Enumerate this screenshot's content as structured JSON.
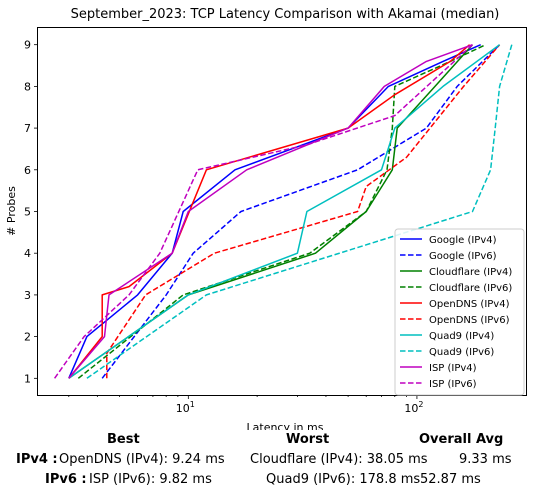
{
  "chart_data": {
    "type": "line",
    "title": "September_2023: TCP Latency Comparison with Akamai (median)",
    "xlabel": "Latency in ms",
    "ylabel": "# Probes",
    "xscale": "log",
    "xlim": [
      2.2,
      300
    ],
    "ylim": [
      0.6,
      9.4
    ],
    "xticks": [
      {
        "value": 10,
        "base": "10",
        "exp": "1"
      },
      {
        "value": 100,
        "base": "10",
        "exp": "2"
      }
    ],
    "yticks": [
      1,
      2,
      3,
      4,
      5,
      6,
      7,
      8,
      9
    ],
    "grid": false,
    "legend_position": "lower-right",
    "series": [
      {
        "name": "Google (IPv4)",
        "color": "#0000ff",
        "dash": "solid",
        "x": [
          3.0,
          3.6,
          6.0,
          8.5,
          9.5,
          16,
          50,
          75,
          130,
          190
        ],
        "y": [
          1,
          2,
          3,
          4,
          5,
          6,
          7,
          8,
          8.6,
          9
        ]
      },
      {
        "name": "Google (IPv6)",
        "color": "#0000ff",
        "dash": "dashed",
        "x": [
          4.2,
          8.0,
          10.5,
          17,
          55,
          110,
          150,
          230
        ],
        "y": [
          1,
          3,
          4,
          5,
          6,
          7,
          8,
          9
        ]
      },
      {
        "name": "Cloudflare (IPv4)",
        "color": "#008000",
        "dash": "solid",
        "x": [
          3.0,
          10.0,
          36,
          60,
          78,
          82,
          120,
          175
        ],
        "y": [
          1,
          3,
          4,
          5,
          6,
          7,
          8,
          9
        ]
      },
      {
        "name": "Cloudflare (IPv6)",
        "color": "#008000",
        "dash": "dashed",
        "x": [
          3.3,
          9.5,
          34,
          60,
          74,
          78,
          80,
          140,
          200
        ],
        "y": [
          1,
          3,
          4,
          5,
          6,
          7,
          8,
          8.6,
          9
        ]
      },
      {
        "name": "OpenDNS (IPv4)",
        "color": "#ff0000",
        "dash": "solid",
        "x": [
          3.0,
          4.2,
          4.2,
          5.5,
          8.5,
          12,
          50,
          80,
          140,
          170
        ],
        "y": [
          1,
          2,
          3,
          3.2,
          4,
          6,
          7,
          7.8,
          8.6,
          9
        ]
      },
      {
        "name": "OpenDNS (IPv6)",
        "color": "#ff0000",
        "dash": "dashed",
        "x": [
          4.4,
          4.4,
          6.5,
          13,
          55,
          60,
          90,
          160,
          230
        ],
        "y": [
          1,
          1.6,
          3,
          4,
          5,
          5.6,
          6.3,
          8,
          9
        ]
      },
      {
        "name": "Quad9 (IPv4)",
        "color": "#00bfbf",
        "dash": "solid",
        "x": [
          3.0,
          10.0,
          30,
          33,
          70,
          80,
          130,
          230
        ],
        "y": [
          1,
          3,
          4,
          5,
          6,
          7,
          8,
          9
        ]
      },
      {
        "name": "Quad9 (IPv6)",
        "color": "#00bfbf",
        "dash": "dashed",
        "x": [
          3.6,
          12,
          175,
          210,
          220,
          230,
          260
        ],
        "y": [
          1,
          3,
          5,
          6,
          7,
          8,
          9
        ]
      },
      {
        "name": "ISP (IPv4)",
        "color": "#bf00bf",
        "dash": "solid",
        "x": [
          3.0,
          4.3,
          4.5,
          8.5,
          10.0,
          18,
          50,
          72,
          110,
          175
        ],
        "y": [
          1,
          2,
          3,
          4,
          5,
          6,
          7,
          8,
          8.6,
          9
        ]
      },
      {
        "name": "ISP (IPv6)",
        "color": "#bf00bf",
        "dash": "dashed",
        "x": [
          2.6,
          3.5,
          5.5,
          7.5,
          11,
          33,
          80,
          175
        ],
        "y": [
          1,
          2,
          3,
          4,
          6,
          6.6,
          7.3,
          9
        ]
      }
    ]
  },
  "stats": {
    "headers": {
      "best": "Best",
      "worst": "Worst",
      "avg": "Overall Avg"
    },
    "rows": [
      {
        "label": "IPv4 :",
        "best": "OpenDNS (IPv4): 9.24 ms",
        "worst": "Cloudflare (IPv4): 38.05 ms",
        "avg": "9.33 ms"
      },
      {
        "label": "IPv6 :",
        "best": "ISP (IPv6): 9.82 ms",
        "worst": "Quad9 (IPv6): 178.8 ms",
        "avg": "52.87 ms"
      }
    ]
  }
}
